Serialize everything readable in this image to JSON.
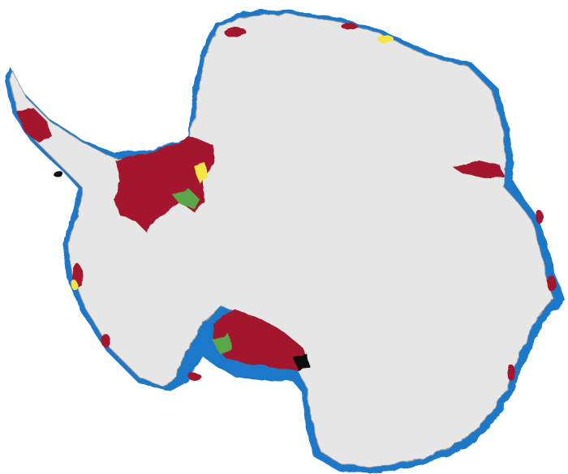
{
  "map": {
    "subject": "Antarctica",
    "colors": {
      "background": "#ffffff",
      "ice_sheet": "#e6e6e6",
      "ice_shadow": "#bdbdbd",
      "red_region": "#a3152e",
      "blue_region": "#1f78c8",
      "yellow_region": "#f4e542",
      "green_region": "#5aa64a",
      "black_region": "#111111"
    }
  }
}
